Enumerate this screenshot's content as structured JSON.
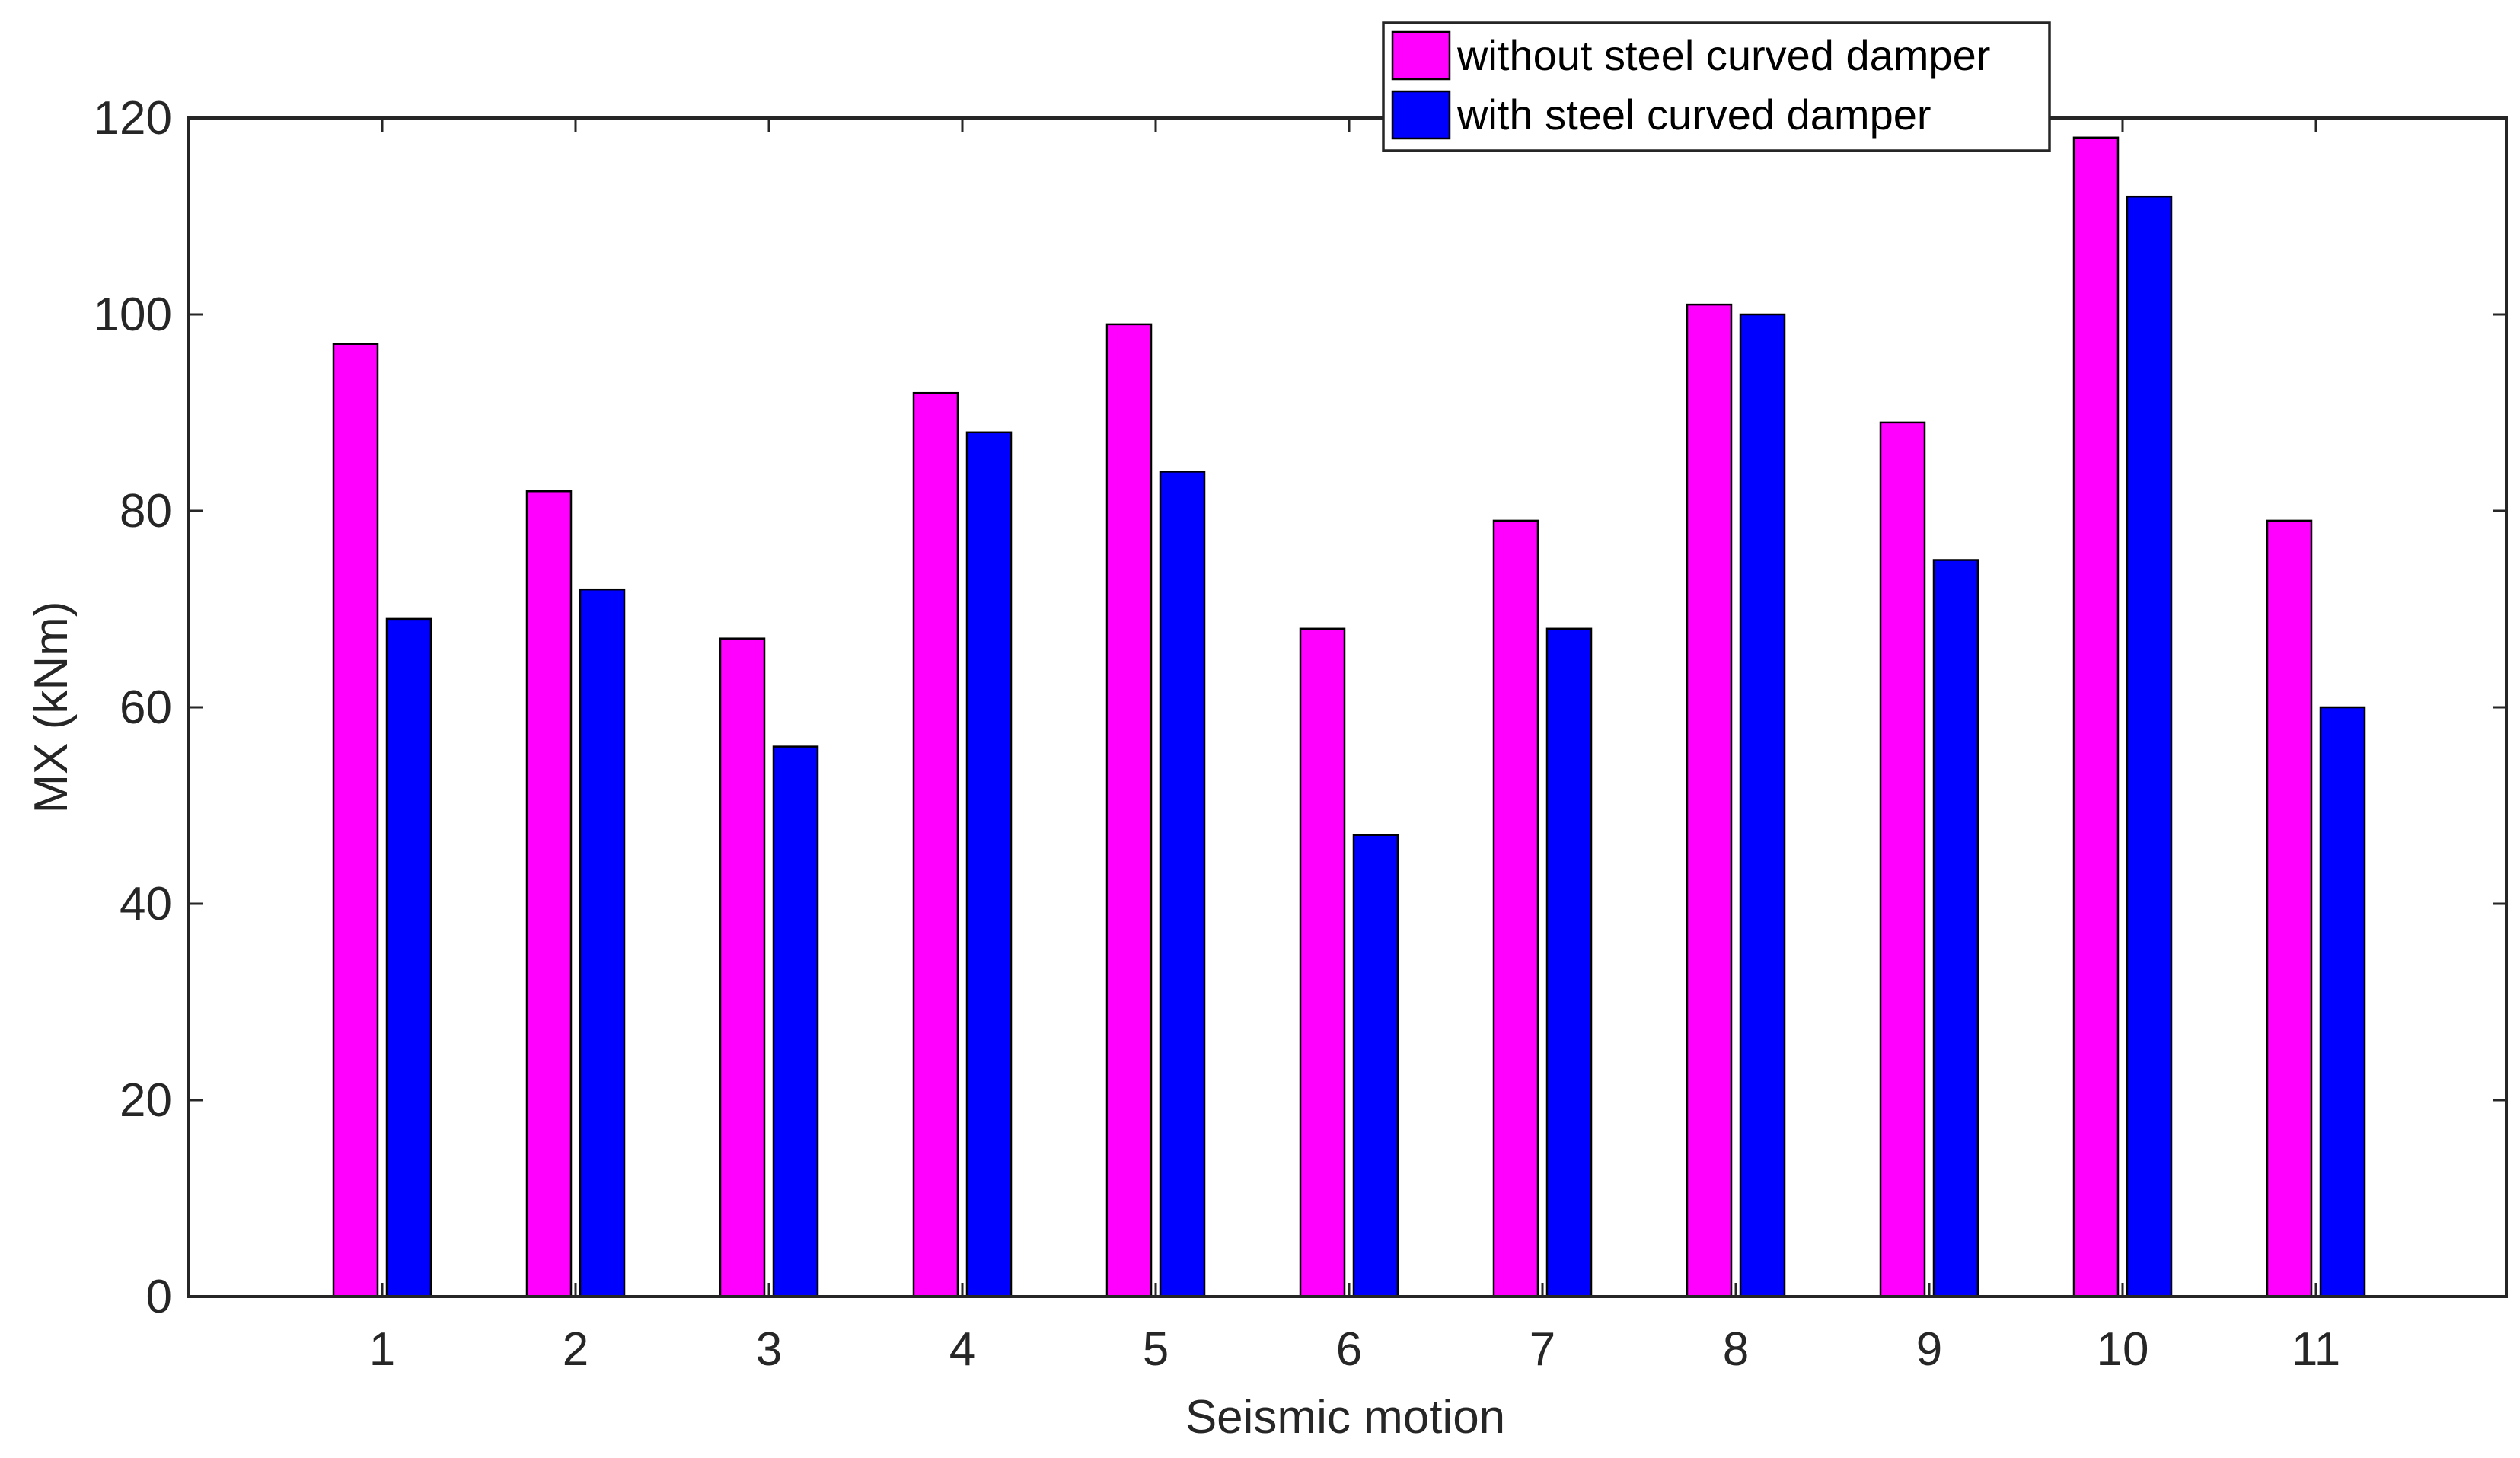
{
  "chart_data": {
    "type": "bar",
    "title": "",
    "xlabel": "Seismic motion",
    "ylabel": "MX (kNm)",
    "categories": [
      "1",
      "2",
      "3",
      "4",
      "5",
      "6",
      "7",
      "8",
      "9",
      "10",
      "11"
    ],
    "ylim": [
      0,
      120
    ],
    "yticks": [
      0,
      20,
      40,
      60,
      80,
      100,
      120
    ],
    "grid": false,
    "legend_position": "top-right",
    "series": [
      {
        "name": "without steel curved damper",
        "color": "#FF00FF",
        "values": [
          97,
          82,
          67,
          92,
          99,
          68,
          79,
          101,
          89,
          118,
          79
        ]
      },
      {
        "name": "with steel curved damper",
        "color": "#0000FF",
        "values": [
          69,
          72,
          56,
          88,
          84,
          47,
          68,
          100,
          75,
          112,
          60
        ]
      }
    ]
  }
}
